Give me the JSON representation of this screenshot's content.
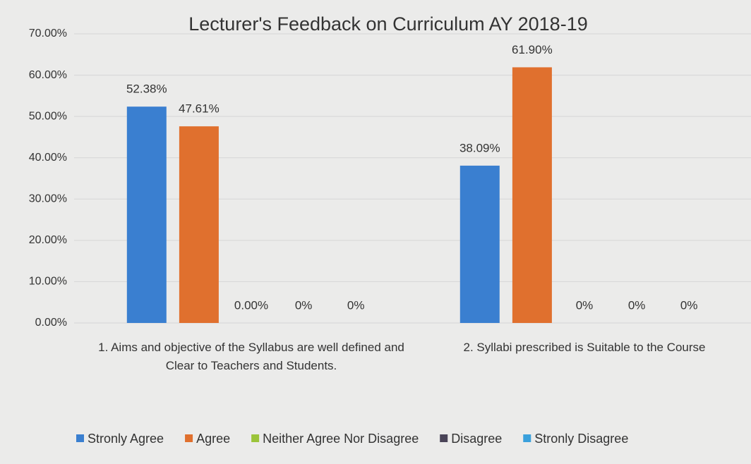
{
  "chart_data": {
    "type": "bar",
    "title": "Lecturer's Feedback on Curriculum AY 2018-19",
    "categories": [
      "1. Aims and objective of the Syllabus are well defined and Clear to Teachers and Students.",
      "2. Syllabi prescribed is Suitable to the Course"
    ],
    "series": [
      {
        "name": "Stronly Agree",
        "color": "#3a7fd0",
        "values": [
          52.38,
          38.09
        ],
        "value_labels": [
          "52.38%",
          "38.09%"
        ]
      },
      {
        "name": "Agree",
        "color": "#e0702e",
        "values": [
          47.61,
          61.9
        ],
        "value_labels": [
          "47.61%",
          "61.90%"
        ]
      },
      {
        "name": "Neither Agree Nor Disagree",
        "color": "#9bc43a",
        "values": [
          0,
          0
        ],
        "value_labels": [
          "0.00%",
          "0%"
        ]
      },
      {
        "name": "Disagree",
        "color": "#4a4458",
        "values": [
          0,
          0
        ],
        "value_labels": [
          "0%",
          "0%"
        ]
      },
      {
        "name": "Stronly Disagree",
        "color": "#3aa0dc",
        "values": [
          0,
          0
        ],
        "value_labels": [
          "0%",
          "0%"
        ]
      }
    ],
    "ylim": [
      0,
      70
    ],
    "yticks": [
      {
        "value": 0,
        "label": "0.00%"
      },
      {
        "value": 10,
        "label": "10.00%"
      },
      {
        "value": 20,
        "label": "20.00%"
      },
      {
        "value": 30,
        "label": "30.00%"
      },
      {
        "value": 40,
        "label": "40.00%"
      },
      {
        "value": 50,
        "label": "50.00%"
      },
      {
        "value": 60,
        "label": "60.00%"
      },
      {
        "value": 70,
        "label": "70.00%"
      }
    ],
    "grid": true,
    "legend": "bottom"
  }
}
